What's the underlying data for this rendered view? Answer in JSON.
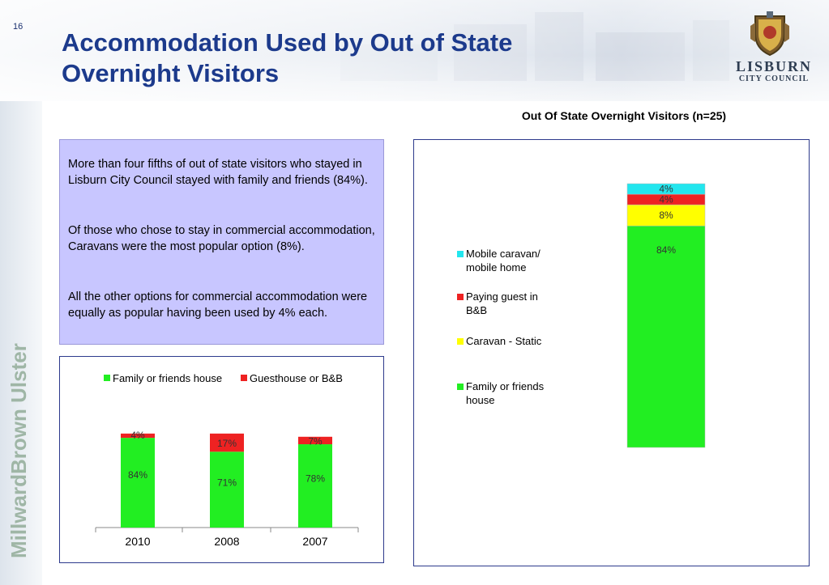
{
  "slide_number": "16",
  "title_line1": "Accommodation Used by Out of State",
  "title_line2": "Overnight Visitors",
  "logo": {
    "name": "LISBURN",
    "subname": "CITY COUNCIL",
    "icon": "crest-icon"
  },
  "brand_vertical": "MillwardBrown Ulster",
  "right_chart_title": "Out Of State Overnight Visitors (n=25)",
  "text_box": {
    "p1": "More than four fifths of out of state visitors who stayed in Lisburn City Council stayed with family and friends (84%).",
    "p2": "Of those who chose to stay in commercial accommodation, Caravans were the most popular option (8%).",
    "p3": "All the other options for commercial accommodation were equally as popular having been used by 4% each."
  },
  "colors": {
    "green": "#22ee22",
    "red": "#ee2222",
    "yellow": "#ffff00",
    "cyan": "#22e6ee",
    "title_blue": "#1c3a8c"
  },
  "chart_data": [
    {
      "type": "bar",
      "stacked": true,
      "categories": [
        "2010",
        "2008",
        "2007"
      ],
      "series": [
        {
          "name": "Family or friends house",
          "values": [
            84,
            71,
            78
          ],
          "labels": [
            "84%",
            "71%",
            "78%"
          ],
          "color": "#22ee22"
        },
        {
          "name": "Guesthouse or B&B",
          "values": [
            4,
            17,
            7
          ],
          "labels": [
            "4%",
            "17%",
            "7%"
          ],
          "color": "#ee2222"
        }
      ],
      "legend_position": "top",
      "ylim": [
        0,
        100
      ],
      "grid": false
    },
    {
      "type": "bar",
      "stacked": true,
      "categories": [
        ""
      ],
      "series": [
        {
          "name": "Family or friends house",
          "values": [
            84
          ],
          "label": "84%",
          "color": "#22ee22"
        },
        {
          "name": "Caravan - Static",
          "values": [
            8
          ],
          "label": "8%",
          "color": "#ffff00"
        },
        {
          "name": "Paying guest in B&B",
          "values": [
            4
          ],
          "label": "4%",
          "color": "#ee2222"
        },
        {
          "name": "Mobile caravan/ mobile home",
          "values": [
            4
          ],
          "label": "4%",
          "color": "#22e6ee"
        }
      ],
      "legend_position": "left",
      "ylim": [
        0,
        100
      ],
      "grid": false
    }
  ]
}
